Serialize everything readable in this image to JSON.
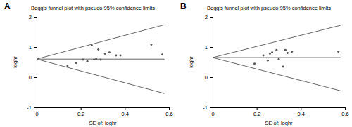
{
  "chart_data": [
    {
      "type": "scatter",
      "annotation": "A",
      "title": "Begg's funnel plot with pseudo 95% confidence limits",
      "x_label": "SE of: loghr",
      "y_label": "loghr",
      "x": [
        0.14,
        0.18,
        0.21,
        0.23,
        0.25,
        0.26,
        0.27,
        0.28,
        0.29,
        0.31,
        0.33,
        0.36,
        0.38,
        0.52,
        0.57
      ],
      "y": [
        0.37,
        0.47,
        0.58,
        0.53,
        1.05,
        0.58,
        0.6,
        0.92,
        0.58,
        0.78,
        0.82,
        0.72,
        0.72,
        1.08,
        0.75
      ],
      "pooled": 0.6,
      "limits": {
        "x": [
          0,
          0.58
        ],
        "upper": [
          0.6,
          1.74
        ],
        "lower": [
          0.6,
          -0.54
        ]
      },
      "xlim": [
        0,
        0.6
      ],
      "xticks": [
        0,
        0.2,
        0.4,
        0.6
      ],
      "ylim": [
        -1,
        2
      ],
      "yticks": [
        -1,
        0,
        1,
        2
      ],
      "color": "#555555",
      "marker": "circle"
    },
    {
      "type": "scatter",
      "annotation": "B",
      "title": "Begg's funnel plot with pseudo 95% confidence limits",
      "x_label": "SE of: loghr",
      "y_label": "loghr",
      "x": [
        0.19,
        0.23,
        0.25,
        0.26,
        0.27,
        0.29,
        0.3,
        0.32,
        0.33,
        0.34,
        0.36,
        0.57
      ],
      "y": [
        0.45,
        0.72,
        0.55,
        0.78,
        0.82,
        0.9,
        0.6,
        0.35,
        0.9,
        0.8,
        0.85,
        0.85
      ],
      "pooled": 0.65,
      "limits": {
        "x": [
          0,
          0.58
        ],
        "upper": [
          0.65,
          1.72
        ],
        "lower": [
          0.65,
          -0.45
        ]
      },
      "xlim": [
        0,
        0.6
      ],
      "xticks": [
        0,
        0.2,
        0.4,
        0.6
      ],
      "ylim": [
        -1,
        2
      ],
      "yticks": [
        -1,
        0,
        1,
        2
      ],
      "color": "#555555",
      "marker": "circle"
    }
  ]
}
